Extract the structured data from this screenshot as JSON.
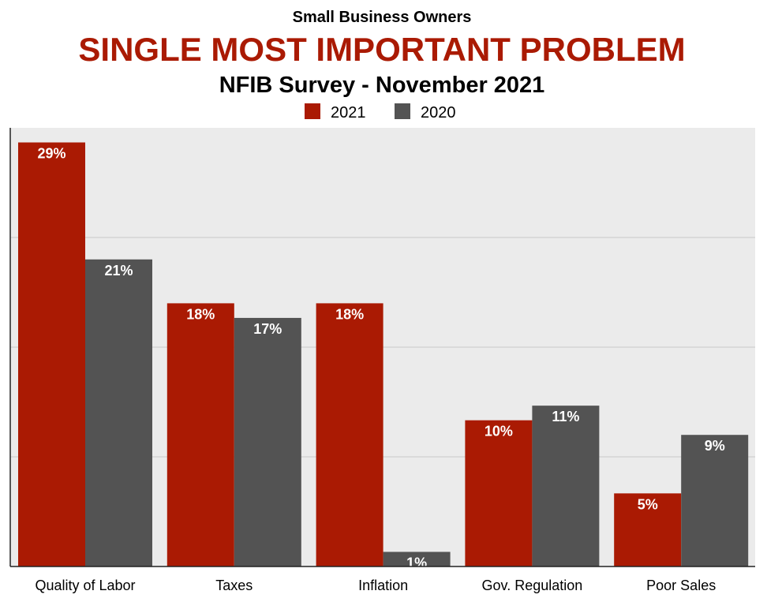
{
  "chart_data": {
    "type": "bar",
    "supertitle": "Small Business Owners",
    "title": "SINGLE MOST IMPORTANT PROBLEM",
    "subtitle": "NFIB Survey - November 2021",
    "categories": [
      "Quality of Labor",
      "Taxes",
      "Inflation",
      "Gov. Regulation",
      "Poor Sales"
    ],
    "series": [
      {
        "name": "2021",
        "values": [
          29,
          18,
          18,
          10,
          5
        ],
        "labels": [
          "29%",
          "18%",
          "18%",
          "10%",
          "5%"
        ]
      },
      {
        "name": "2020",
        "values": [
          21,
          17,
          1,
          11,
          9
        ],
        "labels": [
          "21%",
          "17%",
          "1%",
          "11%",
          "9%"
        ]
      }
    ],
    "ylim": [
      0,
      30
    ],
    "grid": true,
    "legend_position": "top-center"
  },
  "colors": {
    "title": "#aa1a03",
    "series_2021": "#aa1a03",
    "series_2020": "#535353",
    "plot_bg": "#ebebeb",
    "grid": "#c9c9c9",
    "axis": "#222222"
  }
}
